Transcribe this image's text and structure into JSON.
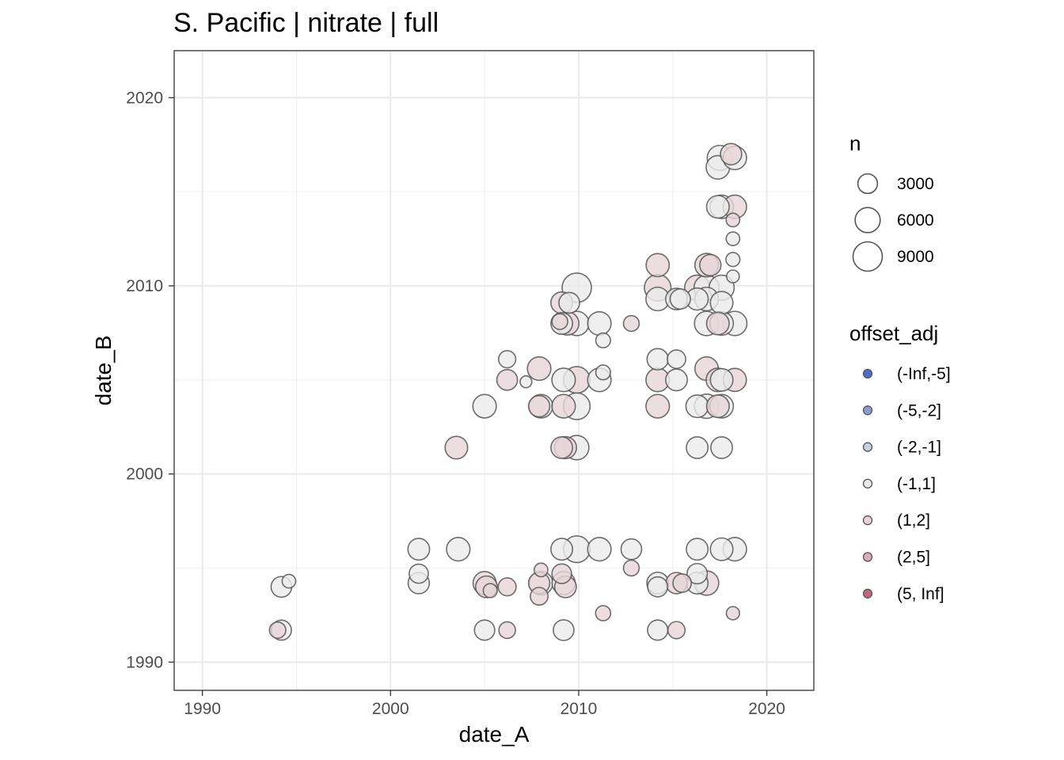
{
  "chart_data": {
    "type": "scatter",
    "title": "S. Pacific | nitrate | full",
    "xlabel": "date_A",
    "ylabel": "date_B",
    "xlim": [
      1988.5,
      2022.5
    ],
    "ylim": [
      1988.5,
      2022.5
    ],
    "x_ticks": [
      1990,
      2000,
      2010,
      2020
    ],
    "y_ticks": [
      1990,
      2000,
      2010,
      2020
    ],
    "x_tick_labels": [
      "1990",
      "2000",
      "2010",
      "2020"
    ],
    "y_tick_labels": [
      "1990",
      "2000",
      "2010",
      "2020"
    ],
    "grid": true,
    "size_legend": {
      "title": "n",
      "values": [
        3000,
        6000,
        9000
      ],
      "labels": [
        "3000",
        "6000",
        "9000"
      ]
    },
    "color_legend": {
      "title": "offset_adj",
      "categories": [
        "(-Inf,-5]",
        "(-5,-2]",
        "(-2,-1]",
        "(-1,1]",
        "(1,2]",
        "(2,5]",
        "(5, Inf]"
      ],
      "colors": [
        "#4a6fc4",
        "#8b9fce",
        "#c9cedf",
        "#ebebeb",
        "#e6d4d8",
        "#d9aeb8",
        "#c0677d"
      ]
    },
    "points": [
      {
        "x": 1994.2,
        "y": 1994.0,
        "n": 3500,
        "c": "(-1,1]"
      },
      {
        "x": 1994.6,
        "y": 1994.3,
        "n": 900,
        "c": "(-1,1]"
      },
      {
        "x": 1994.2,
        "y": 1991.7,
        "n": 3200,
        "c": "(-1,1]"
      },
      {
        "x": 1994.0,
        "y": 1991.7,
        "n": 1700,
        "c": "(1,2]"
      },
      {
        "x": 2001.5,
        "y": 1996.0,
        "n": 4000,
        "c": "(-1,1]"
      },
      {
        "x": 2001.5,
        "y": 1994.7,
        "n": 2800,
        "c": "(-1,1]"
      },
      {
        "x": 2001.5,
        "y": 1994.2,
        "n": 3800,
        "c": "(-1,1]"
      },
      {
        "x": 2003.5,
        "y": 2001.4,
        "n": 4500,
        "c": "(1,2]"
      },
      {
        "x": 2003.6,
        "y": 1996.0,
        "n": 5000,
        "c": "(-1,1]"
      },
      {
        "x": 2005.0,
        "y": 2003.6,
        "n": 5000,
        "c": "(-1,1]"
      },
      {
        "x": 2005.0,
        "y": 1994.2,
        "n": 4800,
        "c": "(1,2]"
      },
      {
        "x": 2005.1,
        "y": 1994.0,
        "n": 4000,
        "c": "(1,2]"
      },
      {
        "x": 2005.3,
        "y": 1993.8,
        "n": 1000,
        "c": "(1,2]"
      },
      {
        "x": 2005.0,
        "y": 1991.7,
        "n": 3300,
        "c": "(-1,1]"
      },
      {
        "x": 2006.2,
        "y": 2006.1,
        "n": 2000,
        "c": "(-1,1]"
      },
      {
        "x": 2006.2,
        "y": 2005.0,
        "n": 3500,
        "c": "(1,2]"
      },
      {
        "x": 2006.2,
        "y": 1994.0,
        "n": 2300,
        "c": "(1,2]"
      },
      {
        "x": 2006.2,
        "y": 1991.7,
        "n": 1800,
        "c": "(1,2]"
      },
      {
        "x": 2007.2,
        "y": 2004.9,
        "n": 500,
        "c": "(-1,1]"
      },
      {
        "x": 2007.9,
        "y": 2005.6,
        "n": 5000,
        "c": "(1,2]"
      },
      {
        "x": 2008.0,
        "y": 2003.6,
        "n": 5000,
        "c": "(-1,1]"
      },
      {
        "x": 2007.9,
        "y": 2003.6,
        "n": 3800,
        "c": "(1,2]"
      },
      {
        "x": 2008.0,
        "y": 1994.9,
        "n": 900,
        "c": "(1,2]"
      },
      {
        "x": 2008.0,
        "y": 1994.2,
        "n": 5000,
        "c": "(-1,1]"
      },
      {
        "x": 2007.9,
        "y": 1994.2,
        "n": 3800,
        "c": "(1,2]"
      },
      {
        "x": 2007.9,
        "y": 1993.5,
        "n": 2200,
        "c": "(1,2]"
      },
      {
        "x": 2009.1,
        "y": 2009.1,
        "n": 4000,
        "c": "(1,2]"
      },
      {
        "x": 2009.5,
        "y": 2009.1,
        "n": 3500,
        "c": "(-1,1]"
      },
      {
        "x": 2009.1,
        "y": 2008.0,
        "n": 4000,
        "c": "(-1,1]"
      },
      {
        "x": 2009.0,
        "y": 2008.1,
        "n": 1500,
        "c": "(1,2]"
      },
      {
        "x": 2009.4,
        "y": 2008.0,
        "n": 4800,
        "c": "(1,2]"
      },
      {
        "x": 2009.9,
        "y": 2008.0,
        "n": 5500,
        "c": "(-1,1]"
      },
      {
        "x": 2009.2,
        "y": 2005.0,
        "n": 5000,
        "c": "(-1,1]"
      },
      {
        "x": 2009.2,
        "y": 2003.6,
        "n": 5000,
        "c": "(1,2]"
      },
      {
        "x": 2009.1,
        "y": 2001.4,
        "n": 4000,
        "c": "(1,2]"
      },
      {
        "x": 2009.3,
        "y": 2001.4,
        "n": 4200,
        "c": "(1,2]"
      },
      {
        "x": 2009.1,
        "y": 1996.0,
        "n": 4000,
        "c": "(-1,1]"
      },
      {
        "x": 2009.1,
        "y": 1994.7,
        "n": 3000,
        "c": "(1,2]"
      },
      {
        "x": 2009.2,
        "y": 1994.2,
        "n": 4800,
        "c": "(-1,1]"
      },
      {
        "x": 2009.3,
        "y": 1994.0,
        "n": 4000,
        "c": "(1,2]"
      },
      {
        "x": 2009.2,
        "y": 1991.7,
        "n": 3500,
        "c": "(-1,1]"
      },
      {
        "x": 2009.9,
        "y": 2009.9,
        "n": 9000,
        "c": "(-1,1]"
      },
      {
        "x": 2009.9,
        "y": 2005.0,
        "n": 7000,
        "c": "(1,2]"
      },
      {
        "x": 2009.9,
        "y": 2003.6,
        "n": 7000,
        "c": "(-1,1]"
      },
      {
        "x": 2009.9,
        "y": 2001.4,
        "n": 5500,
        "c": "(-1,1]"
      },
      {
        "x": 2009.9,
        "y": 1996.0,
        "n": 7000,
        "c": "(-1,1]"
      },
      {
        "x": 2011.1,
        "y": 2008.0,
        "n": 5000,
        "c": "(-1,1]"
      },
      {
        "x": 2011.3,
        "y": 2007.1,
        "n": 1200,
        "c": "(-1,1]"
      },
      {
        "x": 2011.1,
        "y": 2005.0,
        "n": 5000,
        "c": "(-1,1]"
      },
      {
        "x": 2011.3,
        "y": 2005.4,
        "n": 1200,
        "c": "(-1,1]"
      },
      {
        "x": 2011.1,
        "y": 1996.0,
        "n": 5000,
        "c": "(-1,1]"
      },
      {
        "x": 2011.3,
        "y": 1992.6,
        "n": 1300,
        "c": "(1,2]"
      },
      {
        "x": 2012.8,
        "y": 2008.0,
        "n": 1500,
        "c": "(1,2]"
      },
      {
        "x": 2012.8,
        "y": 1996.0,
        "n": 3500,
        "c": "(-1,1]"
      },
      {
        "x": 2012.8,
        "y": 1995.0,
        "n": 1500,
        "c": "(1,2]"
      },
      {
        "x": 2014.2,
        "y": 2011.1,
        "n": 4800,
        "c": "(1,2]"
      },
      {
        "x": 2014.2,
        "y": 2009.9,
        "n": 7000,
        "c": "(1,2]"
      },
      {
        "x": 2014.2,
        "y": 2009.3,
        "n": 5000,
        "c": "(-1,1]"
      },
      {
        "x": 2014.2,
        "y": 2006.1,
        "n": 3800,
        "c": "(-1,1]"
      },
      {
        "x": 2014.2,
        "y": 2005.0,
        "n": 5000,
        "c": "(1,2]"
      },
      {
        "x": 2014.2,
        "y": 2003.6,
        "n": 5000,
        "c": "(1,2]"
      },
      {
        "x": 2014.2,
        "y": 1994.2,
        "n": 4000,
        "c": "(-1,1]"
      },
      {
        "x": 2014.2,
        "y": 1994.0,
        "n": 3200,
        "c": "(-1,1]"
      },
      {
        "x": 2014.2,
        "y": 1991.7,
        "n": 3300,
        "c": "(-1,1]"
      },
      {
        "x": 2015.2,
        "y": 2009.3,
        "n": 4000,
        "c": "(-1,1]"
      },
      {
        "x": 2015.4,
        "y": 2009.3,
        "n": 3300,
        "c": "(-1,1]"
      },
      {
        "x": 2015.2,
        "y": 2006.1,
        "n": 2500,
        "c": "(-1,1]"
      },
      {
        "x": 2015.2,
        "y": 2005.0,
        "n": 4000,
        "c": "(-1,1]"
      },
      {
        "x": 2015.2,
        "y": 1994.2,
        "n": 3800,
        "c": "(1,2]"
      },
      {
        "x": 2015.5,
        "y": 1994.2,
        "n": 2500,
        "c": "(1,2]"
      },
      {
        "x": 2015.2,
        "y": 1991.7,
        "n": 2000,
        "c": "(1,2]"
      },
      {
        "x": 2016.3,
        "y": 2009.9,
        "n": 6000,
        "c": "(1,2]"
      },
      {
        "x": 2016.3,
        "y": 2009.3,
        "n": 4200,
        "c": "(-1,1]"
      },
      {
        "x": 2016.3,
        "y": 2003.6,
        "n": 4500,
        "c": "(-1,1]"
      },
      {
        "x": 2016.3,
        "y": 2001.4,
        "n": 4000,
        "c": "(-1,1]"
      },
      {
        "x": 2016.3,
        "y": 1996.0,
        "n": 4000,
        "c": "(-1,1]"
      },
      {
        "x": 2016.3,
        "y": 1994.7,
        "n": 3300,
        "c": "(-1,1]"
      },
      {
        "x": 2016.3,
        "y": 1994.2,
        "n": 4000,
        "c": "(-1,1]"
      },
      {
        "x": 2016.8,
        "y": 2011.1,
        "n": 5000,
        "c": "(1,2]"
      },
      {
        "x": 2017.0,
        "y": 2011.1,
        "n": 3800,
        "c": "(1,2]"
      },
      {
        "x": 2016.8,
        "y": 2009.9,
        "n": 6000,
        "c": "(-1,1]"
      },
      {
        "x": 2016.8,
        "y": 2009.3,
        "n": 5000,
        "c": "(-1,1]"
      },
      {
        "x": 2016.8,
        "y": 2008.0,
        "n": 5500,
        "c": "(-1,1]"
      },
      {
        "x": 2016.8,
        "y": 2005.6,
        "n": 5000,
        "c": "(1,2]"
      },
      {
        "x": 2016.8,
        "y": 2003.6,
        "n": 5500,
        "c": "(-1,1]"
      },
      {
        "x": 2016.8,
        "y": 1994.2,
        "n": 5500,
        "c": "(1,2]"
      },
      {
        "x": 2017.4,
        "y": 2016.3,
        "n": 5000,
        "c": "(-1,1]"
      },
      {
        "x": 2017.5,
        "y": 2016.8,
        "n": 6000,
        "c": "(-1,1]"
      },
      {
        "x": 2017.4,
        "y": 2014.2,
        "n": 4500,
        "c": "(-1,1]"
      },
      {
        "x": 2017.6,
        "y": 2014.2,
        "n": 5000,
        "c": "(-1,1]"
      },
      {
        "x": 2017.6,
        "y": 2009.9,
        "n": 6000,
        "c": "(-1,1]"
      },
      {
        "x": 2017.6,
        "y": 2009.1,
        "n": 4500,
        "c": "(-1,1]"
      },
      {
        "x": 2017.4,
        "y": 2008.0,
        "n": 4500,
        "c": "(1,2]"
      },
      {
        "x": 2017.6,
        "y": 2008.0,
        "n": 5000,
        "c": "(-1,1]"
      },
      {
        "x": 2017.4,
        "y": 2005.0,
        "n": 5000,
        "c": "(1,2]"
      },
      {
        "x": 2017.6,
        "y": 2005.0,
        "n": 4500,
        "c": "(-1,1]"
      },
      {
        "x": 2017.4,
        "y": 2003.6,
        "n": 4500,
        "c": "(1,2]"
      },
      {
        "x": 2017.6,
        "y": 2003.6,
        "n": 5000,
        "c": "(-1,1]"
      },
      {
        "x": 2017.6,
        "y": 2001.4,
        "n": 4000,
        "c": "(-1,1]"
      },
      {
        "x": 2017.6,
        "y": 1996.0,
        "n": 4500,
        "c": "(-1,1]"
      },
      {
        "x": 2018.1,
        "y": 2017.0,
        "n": 3800,
        "c": "(1,2]"
      },
      {
        "x": 2018.3,
        "y": 2016.8,
        "n": 5000,
        "c": "(-1,1]"
      },
      {
        "x": 2018.3,
        "y": 2014.2,
        "n": 5000,
        "c": "(1,2]"
      },
      {
        "x": 2018.2,
        "y": 2013.5,
        "n": 900,
        "c": "(1,2]"
      },
      {
        "x": 2018.2,
        "y": 2012.5,
        "n": 900,
        "c": "(-1,1]"
      },
      {
        "x": 2018.2,
        "y": 2011.4,
        "n": 1000,
        "c": "(-1,1]"
      },
      {
        "x": 2018.2,
        "y": 2010.5,
        "n": 700,
        "c": "(-1,1]"
      },
      {
        "x": 2018.3,
        "y": 2008.0,
        "n": 5500,
        "c": "(-1,1]"
      },
      {
        "x": 2018.3,
        "y": 2005.0,
        "n": 4800,
        "c": "(1,2]"
      },
      {
        "x": 2018.3,
        "y": 1996.0,
        "n": 5000,
        "c": "(-1,1]"
      },
      {
        "x": 2018.2,
        "y": 1992.6,
        "n": 800,
        "c": "(1,2]"
      }
    ]
  }
}
